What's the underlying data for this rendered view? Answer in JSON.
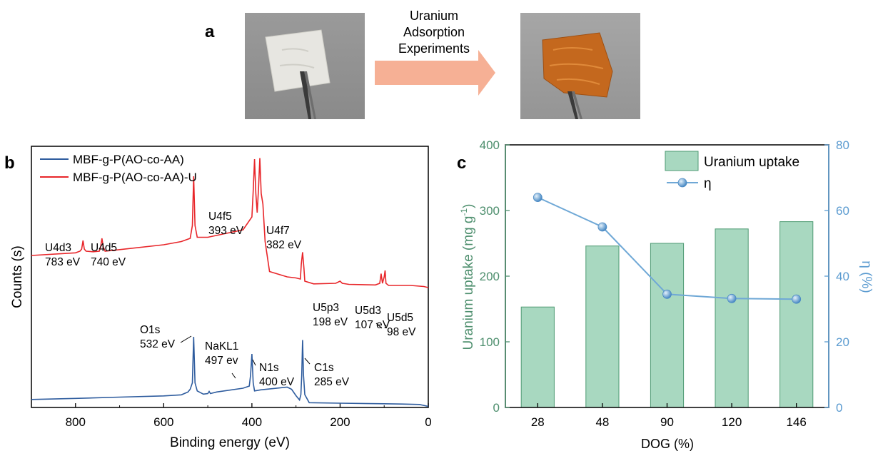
{
  "panel_a": {
    "label": "a",
    "arrow_text": [
      "Uranium",
      "Adsorption",
      "Experiments"
    ],
    "photo_before_icon": "white-fiber-sample-in-tweezers",
    "photo_after_icon": "orange-fiber-sample-in-tweezers",
    "arrow_color": "#F6B095"
  },
  "panel_b": {
    "label": "b",
    "chart_data": {
      "type": "line",
      "xlabel": "Binding energy (eV)",
      "ylabel": "Counts (s)",
      "xlim": [
        900,
        0
      ],
      "x_reversed": true,
      "xticks": [
        800,
        600,
        400,
        200,
        0
      ],
      "yticks": [],
      "grid": false,
      "legend_position": "top-left",
      "series": [
        {
          "name": "MBF-g-P(AO-co-AA)",
          "color": "#2E5C9E",
          "x": [
            900,
            800,
            700,
            600,
            560,
            545,
            540,
            535,
            532,
            529,
            524,
            510,
            500,
            497,
            494,
            480,
            420,
            406,
            403,
            400,
            397,
            394,
            380,
            320,
            310,
            300,
            292,
            289,
            287,
            285,
            283,
            280,
            270,
            200,
            100,
            60,
            20,
            0
          ],
          "y": [
            0.075,
            0.085,
            0.097,
            0.108,
            0.118,
            0.145,
            0.17,
            0.23,
            0.66,
            0.23,
            0.155,
            0.125,
            0.13,
            0.15,
            0.13,
            0.145,
            0.18,
            0.2,
            0.3,
            0.5,
            0.23,
            0.155,
            0.165,
            0.19,
            0.17,
            0.11,
            0.07,
            0.12,
            0.3,
            0.63,
            0.3,
            0.12,
            0.045,
            0.04,
            0.035,
            0.032,
            0.028,
            0.01
          ]
        },
        {
          "name": "MBF-g-P(AO-co-AA)-U",
          "color": "#E8262A",
          "x": [
            900,
            800,
            790,
            786,
            783,
            780,
            776,
            760,
            746,
            743,
            740,
            737,
            733,
            700,
            600,
            560,
            540,
            535,
            532,
            529,
            524,
            500,
            420,
            400,
            397,
            394,
            391,
            388,
            385,
            382,
            379,
            375,
            370,
            360,
            320,
            300,
            290,
            288,
            285,
            282,
            280,
            260,
            210,
            200,
            195,
            180,
            120,
            110,
            107,
            104,
            100,
            98,
            96,
            90,
            40,
            10,
            0
          ],
          "y": [
            1.42,
            1.445,
            1.46,
            1.48,
            1.56,
            1.48,
            1.46,
            1.455,
            1.46,
            1.5,
            1.58,
            1.5,
            1.46,
            1.475,
            1.52,
            1.55,
            1.58,
            1.7,
            2.16,
            1.7,
            1.59,
            1.59,
            1.66,
            1.78,
            2.02,
            2.32,
            2.0,
            1.82,
            2.05,
            2.33,
            2.0,
            1.9,
            1.55,
            1.27,
            1.22,
            1.21,
            1.2,
            1.34,
            1.45,
            1.3,
            1.18,
            1.155,
            1.16,
            1.18,
            1.16,
            1.15,
            1.145,
            1.16,
            1.25,
            1.16,
            1.22,
            1.28,
            1.16,
            1.14,
            1.14,
            1.13,
            1.12
          ]
        }
      ],
      "annotations": [
        {
          "text": [
            "O1s",
            "532 eV"
          ],
          "x": 532,
          "y": 0.66
        },
        {
          "text": [
            "NaKL1",
            "497 ev"
          ],
          "x": 497,
          "y": 0.15
        },
        {
          "text": [
            "N1s",
            "400 eV"
          ],
          "x": 400,
          "y": 0.5
        },
        {
          "text": [
            "C1s",
            "285 eV"
          ],
          "x": 285,
          "y": 0.63
        },
        {
          "text": [
            "U4d3",
            "783 eV"
          ],
          "x": 783,
          "y": 1.56
        },
        {
          "text": [
            "U4d5",
            "740 eV"
          ],
          "x": 740,
          "y": 1.58
        },
        {
          "text": [
            "U4f5",
            "393 eV"
          ],
          "x": 393,
          "y": 2.32
        },
        {
          "text": [
            "U4f7",
            "382 eV"
          ],
          "x": 382,
          "y": 2.33
        },
        {
          "text": [
            "U5p3",
            "198 eV"
          ],
          "x": 198,
          "y": 1.18
        },
        {
          "text": [
            "U5d3",
            "107 eV"
          ],
          "x": 107,
          "y": 1.25
        },
        {
          "text": [
            "U5d5",
            "98 eV"
          ],
          "x": 98,
          "y": 1.28
        }
      ]
    }
  },
  "panel_c": {
    "label": "c",
    "chart_data": {
      "type": "bar",
      "xlabel": "DOG (%)",
      "ylabel": "Uranium uptake (mg g",
      "ylabel_sup": "-1",
      "ylabel_suffix": ")",
      "y2label": "η (%)",
      "categories": [
        "28",
        "48",
        "90",
        "120",
        "146"
      ],
      "ylim": [
        0,
        400
      ],
      "yticks": [
        0,
        100,
        200,
        300,
        400
      ],
      "y2lim": [
        0,
        80
      ],
      "y2ticks": [
        0,
        20,
        40,
        60,
        80
      ],
      "grid": false,
      "legend_position": "top-right",
      "series": [
        {
          "name": "Uranium uptake",
          "type": "bar",
          "axis": "left",
          "values": [
            153,
            246,
            250,
            272,
            283
          ],
          "color": "#A8D8C0",
          "edge_color": "#4E9A73"
        },
        {
          "name": "η",
          "type": "line",
          "axis": "right",
          "values": [
            64,
            55,
            34.5,
            33.2,
            33
          ],
          "color": "#6FA8D6"
        }
      ],
      "left_axis_color": "#4E8F6E",
      "right_axis_color": "#5B9BD0"
    }
  }
}
